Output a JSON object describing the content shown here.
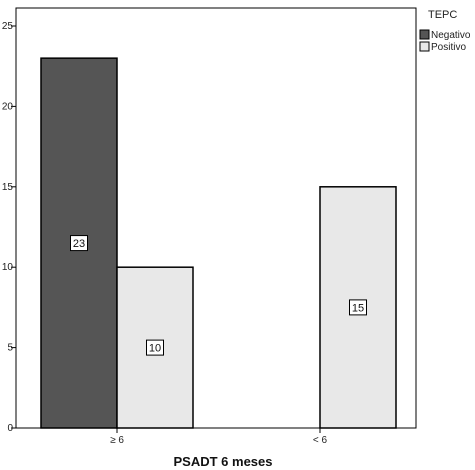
{
  "chart_data": {
    "type": "bar",
    "categories": [
      "≥ 6",
      "< 6"
    ],
    "series": [
      {
        "name": "Negativo",
        "values": [
          23,
          0
        ],
        "color": "#555555"
      },
      {
        "name": "Positivo",
        "values": [
          10,
          15
        ],
        "color": "#e8e8e8"
      }
    ],
    "data_labels": [
      {
        "category_index": 0,
        "series_index": 0,
        "text": "23"
      },
      {
        "category_index": 0,
        "series_index": 1,
        "text": "10"
      },
      {
        "category_index": 1,
        "series_index": 1,
        "text": "15"
      }
    ],
    "title": "",
    "xlabel": "PSADT 6 meses",
    "ylabel": "",
    "ylim": [
      0,
      25
    ],
    "yticks": [
      0,
      5,
      10,
      15,
      20,
      25
    ],
    "grid": false,
    "legend": {
      "title": "TEPC",
      "placement": "top-right outside"
    }
  }
}
